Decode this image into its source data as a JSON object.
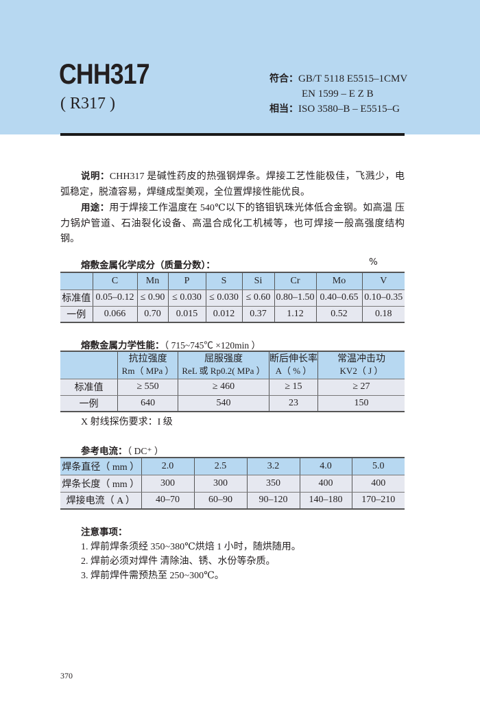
{
  "header": {
    "title": "CHH317",
    "subtitle": "( R317 )",
    "conform_label": "符合：",
    "conform_1": "GB/T 5118 E5515–1CMV",
    "conform_2": "EN 1599 – E Z B",
    "equiv_label": "相当：",
    "equiv": "ISO 3580–B – E5515–G"
  },
  "description": {
    "label": "说明：",
    "text": "CHH317 是碱性药皮的热强钢焊条。焊接工艺性能极佳，飞溅少，电弧稳定，脱渣容易，焊缝成型美观，全位置焊接性能优良。"
  },
  "usage": {
    "label": "用途：",
    "text": "用于焊接工作温度在 540℃以下的铬钼钒珠光体低合金钢。如高温 压力锅炉管道、石油裂化设备、高温合成化工机械等，也可焊接一般高强度结构钢。"
  },
  "chem": {
    "caption": "熔敷金属化学成分（质量分数）：",
    "unit": "%",
    "headers": [
      "",
      "C",
      "Mn",
      "P",
      "S",
      "Si",
      "Cr",
      "Mo",
      "V"
    ],
    "rows": [
      [
        "标准值",
        "0.05–0.12",
        "≤ 0.90",
        "≤ 0.030",
        "≤ 0.030",
        "≤ 0.60",
        "0.80–1.50",
        "0.40–0.65",
        "0.10–0.35"
      ],
      [
        "一例",
        "0.066",
        "0.70",
        "0.015",
        "0.012",
        "0.37",
        "1.12",
        "0.52",
        "0.18"
      ]
    ]
  },
  "mech": {
    "caption": "熔敷金属力学性能：",
    "condition": "（ 715~745℃ ×120min ）",
    "headers": [
      [
        "",
        ""
      ],
      [
        "抗拉强度",
        "Rm（ MPa ）"
      ],
      [
        "屈服强度",
        "ReL 或 Rp0.2( MPa ）"
      ],
      [
        "断后伸长率",
        "A（ % ）"
      ],
      [
        "常温冲击功",
        "KV2（ J ）"
      ]
    ],
    "rows": [
      [
        "标准值",
        "≥ 550",
        "≥ 460",
        "≥ 15",
        "≥ 27"
      ],
      [
        "一例",
        "640",
        "540",
        "23",
        "150"
      ]
    ],
    "xray": "X 射线探伤要求：I 级"
  },
  "current": {
    "caption": "参考电流：",
    "type": "（ DC⁺ ）",
    "rows": [
      [
        "焊条直径（ mm ）",
        "2.0",
        "2.5",
        "3.2",
        "4.0",
        "5.0"
      ],
      [
        "焊条长度（ mm ）",
        "300",
        "300",
        "350",
        "400",
        "400"
      ],
      [
        "焊接电流（ A ）",
        "40–70",
        "60–90",
        "90–120",
        "140–180",
        "170–210"
      ]
    ]
  },
  "notes": {
    "heading": "注意事项：",
    "items": [
      "1. 焊前焊条须经 350~380℃烘焙 1 小时，随烘随用。",
      "2. 焊前必须对焊件 清除油、锈、水份等杂质。",
      "3. 焊前焊件需预热至 250~300℃。"
    ]
  },
  "page_number": "370",
  "colors": {
    "band": "#b7d8f1",
    "row": "#e6e8f0"
  }
}
